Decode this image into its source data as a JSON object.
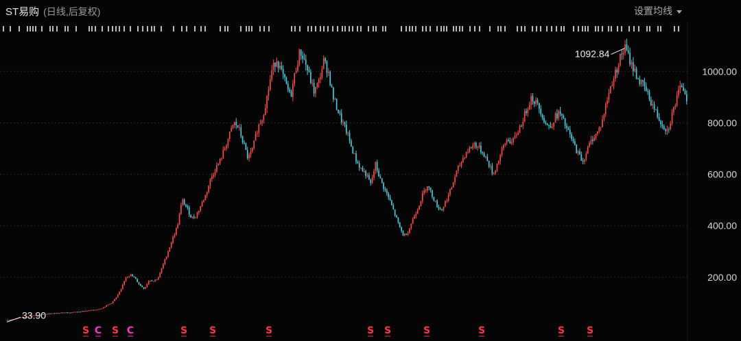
{
  "header": {
    "title": "ST易购",
    "subtitle": "(日线,后复权)",
    "ma_button": "设置均线"
  },
  "colors": {
    "background": "#050505",
    "up": "#ff4a4a",
    "down": "#3fd3e0",
    "grid": "#2a2a2a",
    "marker_s": "#ff3348",
    "marker_c": "#ff33cc"
  },
  "chart_data": {
    "type": "line",
    "ylim": [
      0,
      1110
    ],
    "yticks": [
      200,
      400,
      600,
      800,
      1000
    ],
    "ytick_labels": [
      "200.00",
      "400.00",
      "600.00",
      "800.00",
      "1000.00"
    ],
    "grid": true,
    "series": [
      {
        "values": [
          33.9,
          36,
          40,
          45,
          47,
          50,
          52,
          55,
          57,
          58,
          60,
          62,
          63,
          62,
          64,
          66,
          68,
          70,
          72,
          75,
          80,
          90,
          100,
          120,
          150,
          200,
          210,
          195,
          170,
          155,
          190,
          185,
          200,
          250,
          300,
          350,
          400,
          500,
          470,
          430,
          440,
          480,
          520,
          580,
          620,
          650,
          700,
          750,
          800,
          780,
          720,
          660,
          700,
          780,
          820,
          900,
          1000,
          1050,
          1000,
          950,
          900,
          1000,
          1080,
          1040,
          980,
          920,
          960,
          1040,
          1000,
          900,
          850,
          800,
          760,
          700,
          650,
          620,
          600,
          560,
          640,
          580,
          540,
          500,
          450,
          400,
          360,
          380,
          430,
          470,
          520,
          560,
          520,
          480,
          460,
          500,
          540,
          600,
          640,
          680,
          700,
          720,
          700,
          680,
          640,
          600,
          650,
          700,
          740,
          720,
          760,
          800,
          850,
          900,
          880,
          850,
          800,
          780,
          820,
          840,
          800,
          760,
          720,
          680,
          650,
          700,
          740,
          760,
          800,
          880,
          950,
          1000,
          1060,
          1092.84,
          1040,
          1000,
          960,
          940,
          900,
          860,
          820,
          790,
          770,
          840,
          900,
          950,
          900
        ]
      }
    ],
    "annotations": [
      {
        "label": "1092.84",
        "value": 1092.84
      },
      {
        "label": "33.90",
        "value": 33.9
      }
    ],
    "markers": [
      "S",
      "C",
      "S",
      "C",
      "S",
      "S",
      "S",
      "S",
      "S",
      "S",
      "S",
      "S",
      "S"
    ]
  }
}
